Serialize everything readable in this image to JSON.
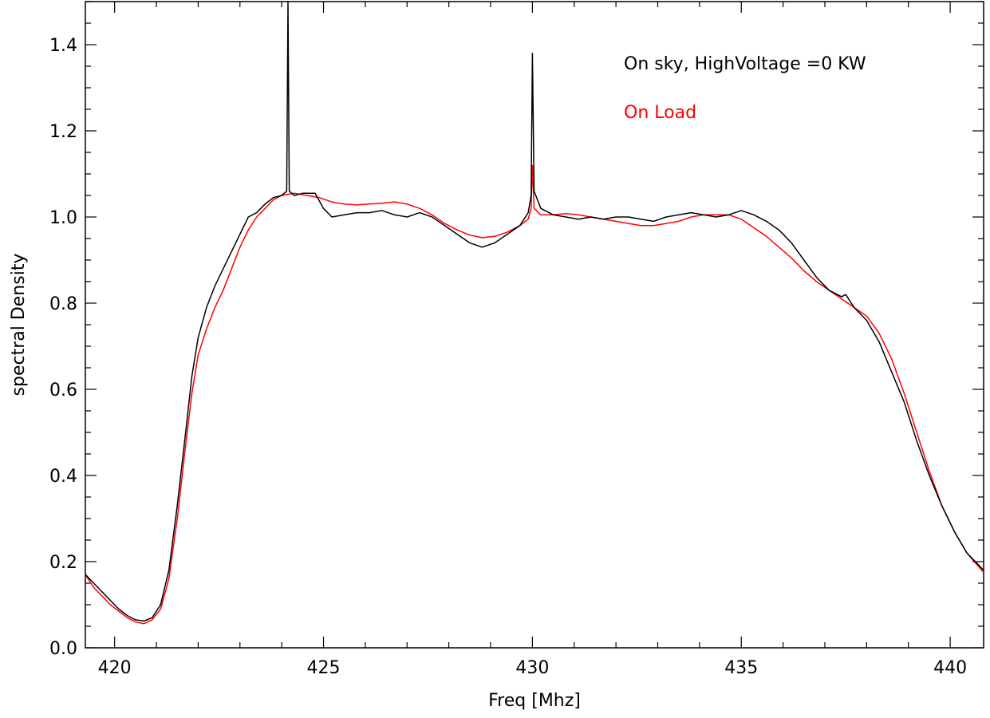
{
  "chart_data": {
    "type": "line",
    "title": "",
    "xlabel": "Freq [Mhz]",
    "ylabel": "spectral Density",
    "xlim": [
      419.3,
      440.8
    ],
    "ylim": [
      0.0,
      1.5
    ],
    "x_ticks": [
      420,
      425,
      430,
      435,
      440
    ],
    "x_tick_labels": [
      "420",
      "425",
      "430",
      "435",
      "440"
    ],
    "y_ticks": [
      0.0,
      0.2,
      0.4,
      0.6,
      0.8,
      1.0,
      1.2,
      1.4
    ],
    "y_tick_labels": [
      "0.0",
      "0.2",
      "0.4",
      "0.6",
      "0.8",
      "1.0",
      "1.2",
      "1.4"
    ],
    "grid": false,
    "legend_placement": "top-right",
    "series": [
      {
        "name": "On sky, HighVoltage =0 KW",
        "color": "#000000",
        "points": [
          [
            419.3,
            0.17
          ],
          [
            419.5,
            0.15
          ],
          [
            419.7,
            0.13
          ],
          [
            419.9,
            0.11
          ],
          [
            420.1,
            0.09
          ],
          [
            420.3,
            0.075
          ],
          [
            420.5,
            0.065
          ],
          [
            420.7,
            0.062
          ],
          [
            420.9,
            0.07
          ],
          [
            421.1,
            0.1
          ],
          [
            421.3,
            0.18
          ],
          [
            421.5,
            0.33
          ],
          [
            421.7,
            0.5
          ],
          [
            421.85,
            0.63
          ],
          [
            422.0,
            0.72
          ],
          [
            422.2,
            0.79
          ],
          [
            422.4,
            0.84
          ],
          [
            422.6,
            0.88
          ],
          [
            422.8,
            0.92
          ],
          [
            423.0,
            0.96
          ],
          [
            423.2,
            1.0
          ],
          [
            423.4,
            1.01
          ],
          [
            423.6,
            1.03
          ],
          [
            423.8,
            1.045
          ],
          [
            424.0,
            1.05
          ],
          [
            424.12,
            1.06
          ],
          [
            424.15,
            1.5
          ],
          [
            424.18,
            1.06
          ],
          [
            424.3,
            1.05
          ],
          [
            424.5,
            1.055
          ],
          [
            424.8,
            1.055
          ],
          [
            425.0,
            1.02
          ],
          [
            425.2,
            1.0
          ],
          [
            425.5,
            1.005
          ],
          [
            425.8,
            1.01
          ],
          [
            426.1,
            1.01
          ],
          [
            426.4,
            1.015
          ],
          [
            426.7,
            1.005
          ],
          [
            427.0,
            1.0
          ],
          [
            427.3,
            1.01
          ],
          [
            427.6,
            1.0
          ],
          [
            427.9,
            0.98
          ],
          [
            428.2,
            0.96
          ],
          [
            428.5,
            0.94
          ],
          [
            428.8,
            0.93
          ],
          [
            429.1,
            0.94
          ],
          [
            429.4,
            0.96
          ],
          [
            429.7,
            0.98
          ],
          [
            429.9,
            1.01
          ],
          [
            429.97,
            1.05
          ],
          [
            430.0,
            1.38
          ],
          [
            430.04,
            1.06
          ],
          [
            430.2,
            1.02
          ],
          [
            430.5,
            1.005
          ],
          [
            430.8,
            1.0
          ],
          [
            431.1,
            0.995
          ],
          [
            431.4,
            1.0
          ],
          [
            431.7,
            0.995
          ],
          [
            432.0,
            1.0
          ],
          [
            432.3,
            1.0
          ],
          [
            432.6,
            0.995
          ],
          [
            432.9,
            0.99
          ],
          [
            433.2,
            1.0
          ],
          [
            433.5,
            1.005
          ],
          [
            433.8,
            1.01
          ],
          [
            434.1,
            1.005
          ],
          [
            434.4,
            1.0
          ],
          [
            434.7,
            1.005
          ],
          [
            435.0,
            1.015
          ],
          [
            435.3,
            1.005
          ],
          [
            435.6,
            0.99
          ],
          [
            435.9,
            0.97
          ],
          [
            436.2,
            0.94
          ],
          [
            436.5,
            0.9
          ],
          [
            436.8,
            0.86
          ],
          [
            437.1,
            0.83
          ],
          [
            437.4,
            0.815
          ],
          [
            437.5,
            0.82
          ],
          [
            437.7,
            0.79
          ],
          [
            438.0,
            0.76
          ],
          [
            438.3,
            0.71
          ],
          [
            438.6,
            0.64
          ],
          [
            438.9,
            0.57
          ],
          [
            439.2,
            0.48
          ],
          [
            439.5,
            0.4
          ],
          [
            439.8,
            0.33
          ],
          [
            440.1,
            0.27
          ],
          [
            440.4,
            0.22
          ],
          [
            440.8,
            0.18
          ]
        ]
      },
      {
        "name": "On Load",
        "color": "#ff0000",
        "points": [
          [
            419.3,
            0.17
          ],
          [
            419.5,
            0.14
          ],
          [
            419.7,
            0.12
          ],
          [
            419.9,
            0.1
          ],
          [
            420.1,
            0.085
          ],
          [
            420.3,
            0.07
          ],
          [
            420.5,
            0.06
          ],
          [
            420.7,
            0.056
          ],
          [
            420.9,
            0.065
          ],
          [
            421.1,
            0.09
          ],
          [
            421.3,
            0.16
          ],
          [
            421.5,
            0.3
          ],
          [
            421.7,
            0.47
          ],
          [
            421.85,
            0.59
          ],
          [
            422.0,
            0.68
          ],
          [
            422.2,
            0.74
          ],
          [
            422.4,
            0.79
          ],
          [
            422.6,
            0.83
          ],
          [
            422.8,
            0.88
          ],
          [
            423.0,
            0.93
          ],
          [
            423.2,
            0.97
          ],
          [
            423.4,
            1.0
          ],
          [
            423.6,
            1.02
          ],
          [
            423.8,
            1.04
          ],
          [
            424.0,
            1.05
          ],
          [
            424.3,
            1.055
          ],
          [
            424.6,
            1.05
          ],
          [
            424.9,
            1.045
          ],
          [
            425.2,
            1.035
          ],
          [
            425.5,
            1.03
          ],
          [
            425.8,
            1.028
          ],
          [
            426.1,
            1.03
          ],
          [
            426.4,
            1.032
          ],
          [
            426.7,
            1.035
          ],
          [
            427.0,
            1.03
          ],
          [
            427.3,
            1.02
          ],
          [
            427.6,
            1.005
          ],
          [
            427.9,
            0.985
          ],
          [
            428.2,
            0.97
          ],
          [
            428.5,
            0.958
          ],
          [
            428.8,
            0.952
          ],
          [
            429.1,
            0.955
          ],
          [
            429.4,
            0.965
          ],
          [
            429.7,
            0.98
          ],
          [
            429.9,
            0.995
          ],
          [
            429.97,
            1.02
          ],
          [
            430.0,
            1.12
          ],
          [
            430.04,
            1.02
          ],
          [
            430.2,
            1.005
          ],
          [
            430.5,
            1.005
          ],
          [
            430.8,
            1.008
          ],
          [
            431.1,
            1.005
          ],
          [
            431.4,
            1.0
          ],
          [
            431.7,
            0.995
          ],
          [
            432.0,
            0.99
          ],
          [
            432.3,
            0.985
          ],
          [
            432.6,
            0.98
          ],
          [
            432.9,
            0.98
          ],
          [
            433.2,
            0.985
          ],
          [
            433.5,
            0.99
          ],
          [
            433.8,
            1.0
          ],
          [
            434.1,
            1.005
          ],
          [
            434.4,
            1.005
          ],
          [
            434.7,
            1.005
          ],
          [
            435.0,
            0.995
          ],
          [
            435.3,
            0.975
          ],
          [
            435.6,
            0.955
          ],
          [
            435.9,
            0.93
          ],
          [
            436.2,
            0.905
          ],
          [
            436.5,
            0.875
          ],
          [
            436.8,
            0.85
          ],
          [
            437.1,
            0.83
          ],
          [
            437.4,
            0.81
          ],
          [
            437.7,
            0.79
          ],
          [
            438.0,
            0.77
          ],
          [
            438.3,
            0.73
          ],
          [
            438.6,
            0.67
          ],
          [
            438.9,
            0.59
          ],
          [
            439.2,
            0.5
          ],
          [
            439.5,
            0.41
          ],
          [
            439.8,
            0.33
          ],
          [
            440.1,
            0.27
          ],
          [
            440.4,
            0.22
          ],
          [
            440.8,
            0.175
          ]
        ]
      }
    ]
  }
}
